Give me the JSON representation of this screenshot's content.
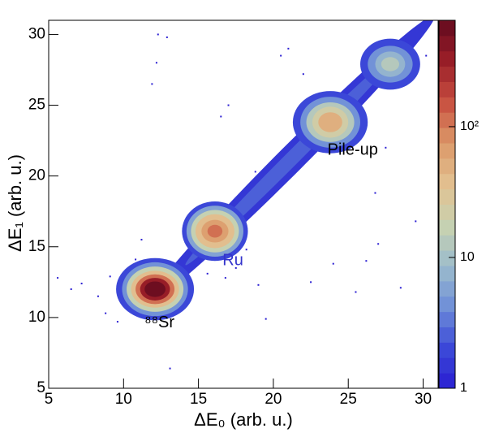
{
  "chart_data": {
    "type": "heatmap",
    "xlabel": "ΔE₀ (arb. u.)",
    "ylabel": "ΔE₁ (arb. u.)",
    "xlim": [
      5,
      31
    ],
    "xticks": [
      5,
      10,
      15,
      20,
      25,
      30
    ],
    "ylim": [
      5,
      31
    ],
    "yticks": [
      5,
      10,
      15,
      20,
      25,
      30
    ],
    "zlim": [
      1,
      650
    ],
    "zlog": true,
    "zticks": [
      1,
      10,
      {
        "value": 100,
        "label": "10²"
      }
    ],
    "colormap": [
      "#2a1ed2",
      "#3c4ad8",
      "#6f8fd8",
      "#9cbccc",
      "#c8d2b0",
      "#e2c090",
      "#dc9868",
      "#c85040",
      "#9a1e28",
      "#620a1e"
    ],
    "clusters": [
      {
        "x": 21.2,
        "y": 21.2,
        "tilt": 45,
        "contours": [
          {
            "rx": 13.5,
            "ry": 0.95,
            "z": 1.5
          },
          {
            "rx": 10,
            "ry": 0.5,
            "z": 2.5
          }
        ]
      },
      {
        "x": 12.1,
        "y": 12.0,
        "contours": [
          {
            "rx": 2.6,
            "ry": 2.2,
            "z": 2
          },
          {
            "rx": 2.2,
            "ry": 1.9,
            "z": 5
          },
          {
            "rx": 1.9,
            "ry": 1.6,
            "z": 15
          },
          {
            "rx": 1.6,
            "ry": 1.3,
            "z": 40
          },
          {
            "rx": 1.3,
            "ry": 1.05,
            "z": 120
          },
          {
            "rx": 1.0,
            "ry": 0.8,
            "z": 300
          },
          {
            "rx": 0.7,
            "ry": 0.55,
            "z": 550
          }
        ]
      },
      {
        "x": 16.1,
        "y": 16.1,
        "contours": [
          {
            "rx": 2.2,
            "ry": 2.1,
            "z": 2
          },
          {
            "rx": 1.9,
            "ry": 1.8,
            "z": 6
          },
          {
            "rx": 1.6,
            "ry": 1.5,
            "z": 15
          },
          {
            "rx": 1.3,
            "ry": 1.2,
            "z": 35
          },
          {
            "rx": 0.9,
            "ry": 0.8,
            "z": 70
          },
          {
            "rx": 0.5,
            "ry": 0.45,
            "z": 110
          }
        ]
      },
      {
        "x": 23.8,
        "y": 23.8,
        "contours": [
          {
            "rx": 2.5,
            "ry": 2.2,
            "z": 2
          },
          {
            "rx": 2.0,
            "ry": 1.8,
            "z": 5
          },
          {
            "rx": 1.6,
            "ry": 1.4,
            "z": 12
          },
          {
            "rx": 1.2,
            "ry": 1.1,
            "z": 25
          },
          {
            "rx": 0.8,
            "ry": 0.7,
            "z": 45
          }
        ]
      },
      {
        "x": 27.8,
        "y": 27.9,
        "contours": [
          {
            "rx": 2.0,
            "ry": 1.8,
            "z": 2
          },
          {
            "rx": 1.5,
            "ry": 1.3,
            "z": 4
          },
          {
            "rx": 1.0,
            "ry": 0.9,
            "z": 8
          },
          {
            "rx": 0.6,
            "ry": 0.5,
            "z": 12
          }
        ]
      }
    ],
    "points": {
      "x": [
        5.6,
        7.2,
        8.3,
        9.1,
        8.8,
        12.3,
        12.9,
        14.2,
        15.0,
        14.7,
        16.8,
        17.5,
        18.2,
        19.0,
        13.5,
        14.0,
        10.8,
        11.2,
        17.0,
        18.8,
        20.5,
        21.0,
        22.5,
        24.0,
        25.5,
        26.2,
        27.0,
        28.5,
        29.5,
        30.2,
        26.8,
        24.5,
        19.5,
        13.1,
        12.2,
        11.9,
        16.5,
        22.0,
        27.5,
        6.5,
        9.6,
        14.4,
        15.6
      ],
      "y": [
        12.8,
        12.4,
        11.5,
        12.9,
        10.3,
        30.0,
        29.8,
        16.5,
        17.8,
        16.2,
        12.8,
        13.5,
        14.8,
        12.3,
        12.9,
        13.2,
        14.1,
        15.5,
        25.0,
        20.3,
        28.5,
        29.0,
        12.5,
        13.8,
        11.8,
        14.0,
        15.2,
        12.1,
        16.8,
        28.5,
        18.8,
        22.0,
        9.9,
        6.4,
        28.0,
        26.5,
        24.2,
        27.2,
        22.0,
        12.0,
        9.7,
        11.2,
        13.1
      ]
    },
    "annotations": [
      {
        "text": "Pile-up",
        "x": 25.3,
        "y": 21.8,
        "color": "#000000"
      },
      {
        "text": "Ru",
        "x": 17.3,
        "y": 14.0,
        "color": "#3333cc"
      },
      {
        "text": "⁸⁸Sr",
        "x": 12.4,
        "y": 9.6,
        "color": "#000000"
      }
    ]
  }
}
